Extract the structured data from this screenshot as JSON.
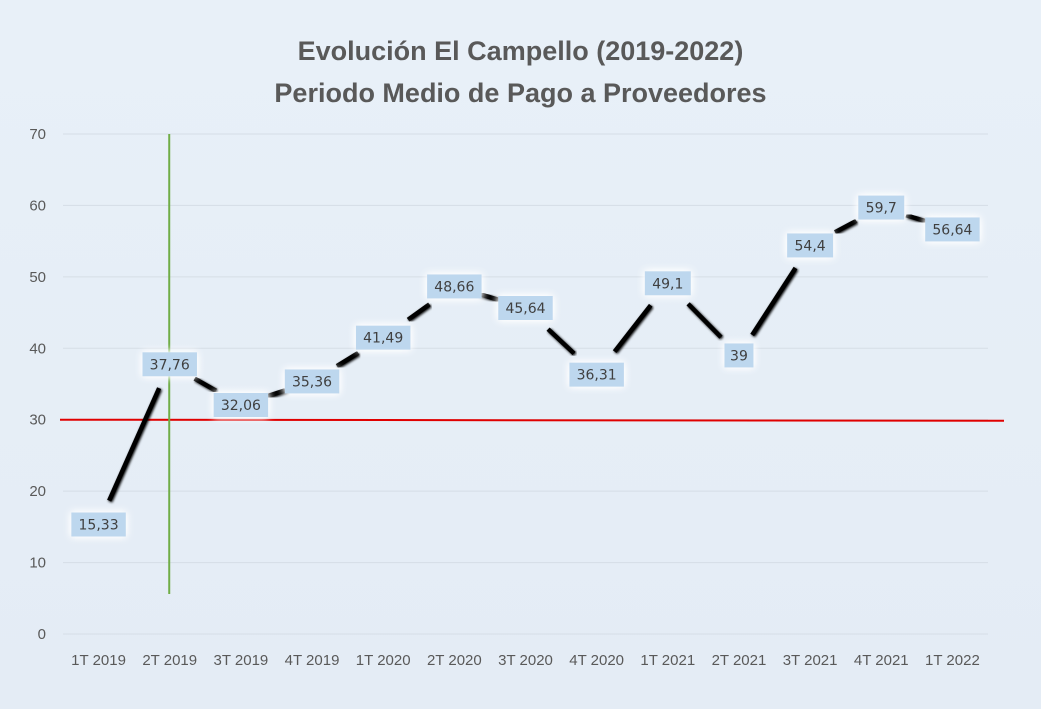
{
  "chart_data": {
    "type": "line",
    "title": "Evolución El Campello (2019-2022)",
    "subtitle": "Periodo Medio de Pago a Proveedores",
    "xlabel": "",
    "ylabel": "",
    "ylim": [
      0,
      70
    ],
    "yticks": [
      "0",
      "10",
      "20",
      "30",
      "40",
      "50",
      "60",
      "70"
    ],
    "grid": true,
    "categories": [
      "1T 2019",
      "2T 2019",
      "3T 2019",
      "4T 2019",
      "1T 2020",
      "2T 2020",
      "3T 2020",
      "4T 2020",
      "1T 2021",
      "2T 2021",
      "3T 2021",
      "4T 2021",
      "1T 2022"
    ],
    "series": [
      {
        "name": "Periodo Medio de Pago",
        "values": [
          15.33,
          37.76,
          32.06,
          35.36,
          41.49,
          48.66,
          45.64,
          36.31,
          49.1,
          39,
          54.4,
          59.7,
          56.64
        ],
        "labels": [
          "15,33",
          "37,76",
          "32,06",
          "35,36",
          "41,49",
          "48,66",
          "45,64",
          "36,31",
          "49,1",
          "39",
          "54,4",
          "59,7",
          "56,64"
        ],
        "color": "#000000"
      }
    ],
    "reference_lines": [
      {
        "orientation": "horizontal",
        "value": 30,
        "color": "#e00000"
      },
      {
        "orientation": "vertical",
        "category": "2T 2019",
        "color": "#70ad47"
      }
    ],
    "label_box_color": "#bdd7ee",
    "legend": "none"
  }
}
